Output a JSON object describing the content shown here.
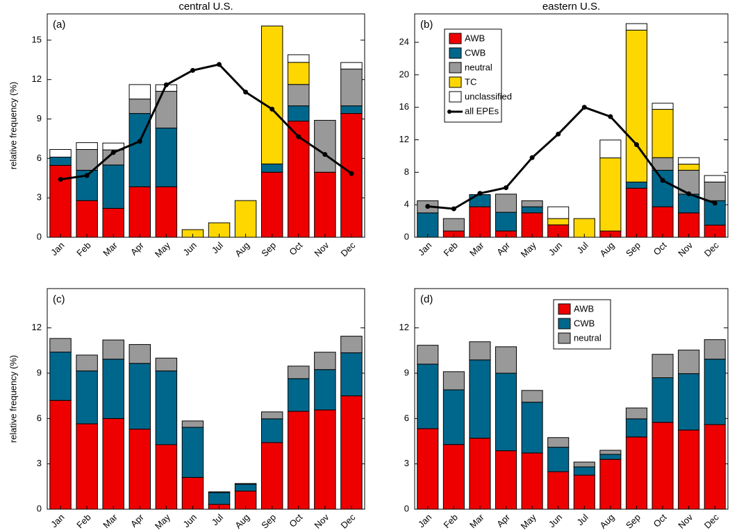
{
  "chart_data": [
    {
      "type": "bar",
      "stacked": true,
      "title": "central U.S.",
      "panel_label": "(a)",
      "ylabel": "relative frequency (%)",
      "categories": [
        "Jan",
        "Feb",
        "Mar",
        "Apr",
        "May",
        "Jun",
        "Jul",
        "Aug",
        "Sep",
        "Oct",
        "Nov",
        "Dec"
      ],
      "ylim": [
        0,
        17
      ],
      "yticks": [
        0,
        3,
        6,
        9,
        12,
        15
      ],
      "series": [
        {
          "name": "AWB",
          "color": "#ee0000",
          "values": [
            5.47,
            2.79,
            2.2,
            3.84,
            3.84,
            null,
            null,
            null,
            4.95,
            8.84,
            4.95,
            9.42
          ]
        },
        {
          "name": "CWB",
          "color": "#00678c",
          "values": [
            0.63,
            2.31,
            3.3,
            5.58,
            4.47,
            null,
            null,
            null,
            0.63,
            1.16,
            null,
            0.58
          ]
        },
        {
          "name": "neutral",
          "color": "#999999",
          "values": [
            null,
            1.58,
            1.15,
            1.1,
            2.8,
            null,
            null,
            null,
            null,
            1.63,
            3.95,
            2.8
          ]
        },
        {
          "name": "TC",
          "color": "#ffd700",
          "values": [
            null,
            null,
            null,
            null,
            null,
            0.58,
            1.1,
            2.79,
            10.5,
            1.68,
            null,
            null
          ]
        },
        {
          "name": "unclassified",
          "color": "#ffffff",
          "values": [
            0.58,
            0.52,
            0.52,
            1.1,
            0.5,
            null,
            null,
            null,
            null,
            0.58,
            null,
            0.5
          ]
        }
      ],
      "line": {
        "name": "all EPEs",
        "color": "#000000",
        "values": [
          4.4,
          4.7,
          6.45,
          7.3,
          11.6,
          12.7,
          13.15,
          11.05,
          9.75,
          7.65,
          6.3,
          4.85
        ]
      }
    },
    {
      "type": "bar",
      "stacked": true,
      "title": "eastern U.S.",
      "panel_label": "(b)",
      "legend": "upper left",
      "categories": [
        "Jan",
        "Feb",
        "Mar",
        "Apr",
        "May",
        "Jun",
        "Jul",
        "Aug",
        "Sep",
        "Oct",
        "Nov",
        "Dec"
      ],
      "ylim": [
        0,
        27.5
      ],
      "yticks": [
        0,
        4,
        8,
        12,
        16,
        20,
        24
      ],
      "series": [
        {
          "name": "AWB",
          "color": "#ee0000",
          "values": [
            null,
            0.77,
            3.75,
            0.77,
            3.0,
            1.53,
            null,
            0.77,
            6.04,
            3.75,
            3.0,
            1.5
          ]
        },
        {
          "name": "CWB",
          "color": "#00678c",
          "values": [
            3.0,
            null,
            1.5,
            2.3,
            0.75,
            null,
            null,
            null,
            0.76,
            4.5,
            2.3,
            3.0
          ]
        },
        {
          "name": "neutral",
          "color": "#999999",
          "values": [
            1.5,
            1.53,
            null,
            2.24,
            0.75,
            null,
            null,
            null,
            null,
            1.55,
            2.95,
            2.3
          ]
        },
        {
          "name": "TC",
          "color": "#ffd700",
          "values": [
            null,
            null,
            null,
            null,
            null,
            0.77,
            2.3,
            9.0,
            18.7,
            5.95,
            0.75,
            null
          ]
        },
        {
          "name": "unclassified",
          "color": "#ffffff",
          "values": [
            null,
            null,
            null,
            null,
            null,
            1.45,
            null,
            2.2,
            0.8,
            0.75,
            0.8,
            0.8
          ]
        }
      ],
      "line": {
        "name": "all EPEs",
        "color": "#000000",
        "values": [
          3.8,
          3.5,
          5.4,
          6.1,
          9.8,
          12.7,
          16.0,
          14.85,
          11.4,
          7.0,
          5.35,
          4.2
        ]
      }
    },
    {
      "type": "bar",
      "stacked": true,
      "panel_label": "(c)",
      "ylabel": "relative frequency (%)",
      "categories": [
        "Jan",
        "Feb",
        "Mar",
        "Apr",
        "May",
        "Jun",
        "Jul",
        "Aug",
        "Sep",
        "Oct",
        "Nov",
        "Dec"
      ],
      "ylim": [
        0,
        14.6
      ],
      "yticks": [
        0,
        3,
        6,
        9,
        12
      ],
      "series": [
        {
          "name": "AWB",
          "color": "#ee0000",
          "values": [
            7.2,
            5.65,
            6.0,
            5.3,
            4.27,
            2.1,
            0.32,
            1.2,
            4.41,
            6.48,
            6.57,
            7.5
          ]
        },
        {
          "name": "CWB",
          "color": "#00678c",
          "values": [
            3.2,
            3.5,
            3.93,
            4.35,
            4.88,
            3.32,
            0.78,
            0.45,
            1.57,
            2.16,
            2.67,
            2.85
          ]
        },
        {
          "name": "neutral",
          "color": "#999999",
          "values": [
            0.9,
            1.05,
            1.27,
            1.25,
            0.85,
            0.42,
            0.05,
            0.05,
            0.46,
            0.83,
            1.15,
            1.1
          ]
        }
      ]
    },
    {
      "type": "bar",
      "stacked": true,
      "panel_label": "(d)",
      "legend": "upper center",
      "categories": [
        "Jan",
        "Feb",
        "Mar",
        "Apr",
        "May",
        "Jun",
        "Jul",
        "Aug",
        "Sep",
        "Oct",
        "Nov",
        "Dec"
      ],
      "ylim": [
        0,
        14.6
      ],
      "yticks": [
        0,
        3,
        6,
        9,
        12
      ],
      "series": [
        {
          "name": "AWB",
          "color": "#ee0000",
          "values": [
            5.33,
            4.28,
            4.7,
            3.87,
            3.72,
            2.48,
            2.25,
            3.3,
            4.78,
            5.75,
            5.24,
            5.6
          ]
        },
        {
          "name": "CWB",
          "color": "#00678c",
          "values": [
            4.27,
            3.62,
            5.18,
            5.13,
            3.36,
            1.62,
            0.55,
            0.33,
            1.2,
            2.95,
            3.73,
            4.33
          ]
        },
        {
          "name": "neutral",
          "color": "#999999",
          "values": [
            1.25,
            1.2,
            1.2,
            1.75,
            0.78,
            0.64,
            0.32,
            0.27,
            0.72,
            1.55,
            1.56,
            1.29
          ]
        }
      ]
    }
  ]
}
